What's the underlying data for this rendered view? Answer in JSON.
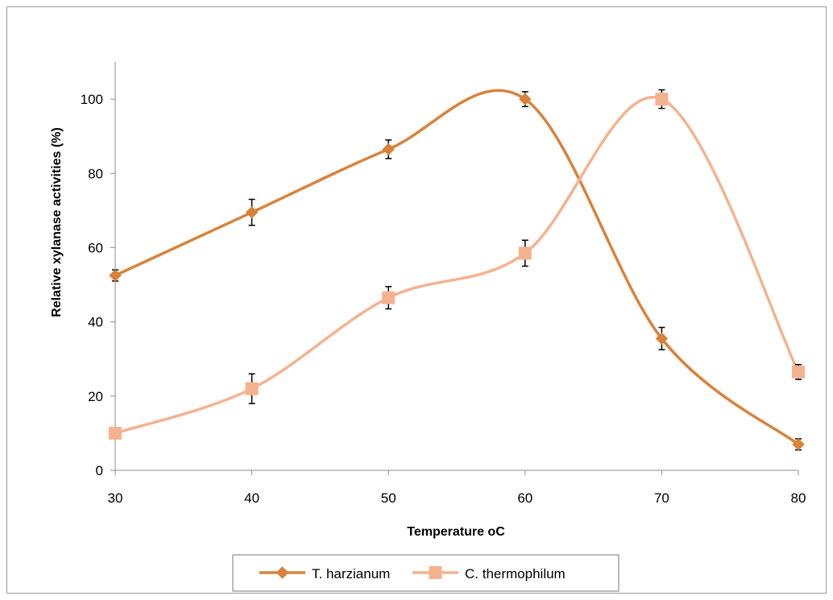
{
  "chart_data": {
    "type": "line",
    "xlabel": "Temperature oC",
    "ylabel": "Relative xylanase activities (%)",
    "x": [
      30,
      40,
      50,
      60,
      70,
      80
    ],
    "x_ticks": [
      "30",
      "40",
      "50",
      "60",
      "70",
      "80"
    ],
    "y_ticks": [
      "0",
      "20",
      "40",
      "60",
      "80",
      "100"
    ],
    "xlim": [
      30,
      80
    ],
    "ylim": [
      0,
      110
    ],
    "grid": false,
    "smooth": true,
    "legend_position": "bottom",
    "series": [
      {
        "name": "T. harzianum",
        "marker": "diamond",
        "color": "#d9823a",
        "values": [
          52.5,
          69.5,
          86.5,
          100,
          35.5,
          7
        ],
        "errors": [
          1.5,
          3.5,
          2.5,
          2,
          3,
          1.5
        ]
      },
      {
        "name": "C. thermophilum",
        "marker": "square",
        "color": "#f5b28f",
        "values": [
          10,
          22,
          46.5,
          58.5,
          100,
          26.5
        ],
        "errors": [
          0.5,
          4,
          3,
          3.5,
          2.5,
          2
        ]
      }
    ]
  }
}
